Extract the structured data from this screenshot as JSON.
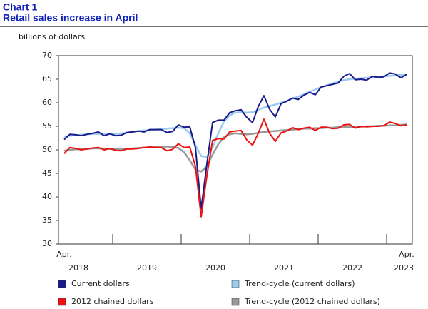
{
  "chart_data": {
    "type": "line",
    "title": "Chart 1",
    "subtitle": "Retail sales increase in April",
    "y_label": "billions of dollars",
    "categories": [
      "Apr.",
      null,
      null,
      null,
      null,
      null,
      null,
      null,
      null,
      null,
      null,
      null,
      null,
      null,
      null,
      null,
      null,
      null,
      null,
      null,
      null,
      null,
      null,
      null,
      null,
      null,
      null,
      null,
      null,
      null,
      null,
      null,
      null,
      null,
      null,
      null,
      null,
      null,
      null,
      null,
      null,
      null,
      null,
      null,
      null,
      null,
      null,
      null,
      null,
      null,
      null,
      null,
      null,
      null,
      null,
      null,
      null,
      null,
      null,
      null,
      "Apr."
    ],
    "year_labels": [
      "2018",
      "2019",
      "2020",
      "2021",
      "2022",
      "2023"
    ],
    "ylim": [
      30,
      70
    ],
    "yticks": [
      30,
      35,
      40,
      45,
      50,
      55,
      60,
      65,
      70
    ],
    "grid": false,
    "series": [
      {
        "name": "Current dollars",
        "color": "#1a1a8c",
        "width": 2,
        "values": [
          52.2,
          53.3,
          53.2,
          53.0,
          53.3,
          53.5,
          53.8,
          53.0,
          53.4,
          53.0,
          53.1,
          53.7,
          53.8,
          54.0,
          53.8,
          54.3,
          54.3,
          54.3,
          53.7,
          53.9,
          55.3,
          54.8,
          54.9,
          50.5,
          37.5,
          47.0,
          55.8,
          56.3,
          56.3,
          57.9,
          58.3,
          58.5,
          56.9,
          55.8,
          59.2,
          61.5,
          58.6,
          57.0,
          59.8,
          60.3,
          61.0,
          60.7,
          61.6,
          62.2,
          61.7,
          63.3,
          63.6,
          63.9,
          64.2,
          65.6,
          66.2,
          64.9,
          65.0,
          64.8,
          65.6,
          65.4,
          65.5,
          66.3,
          66.1,
          65.3,
          66.0
        ]
      },
      {
        "name": "Trend-cycle (current dollars)",
        "color": "#99ccee",
        "width": 2.5,
        "values": [
          52.8,
          53.0,
          53.1,
          53.2,
          53.3,
          53.4,
          53.4,
          53.4,
          53.4,
          53.4,
          53.5,
          53.6,
          53.8,
          54.0,
          54.1,
          54.2,
          54.3,
          54.4,
          54.5,
          54.6,
          54.7,
          54.6,
          53.5,
          51.0,
          48.7,
          48.5,
          50.5,
          53.5,
          56.0,
          57.3,
          57.9,
          58.0,
          57.9,
          58.0,
          58.5,
          59.0,
          59.3,
          59.6,
          60.0,
          60.4,
          60.9,
          61.3,
          61.8,
          62.3,
          62.8,
          63.3,
          63.7,
          64.1,
          64.5,
          64.8,
          65.0,
          65.1,
          65.2,
          65.3,
          65.4,
          65.5,
          65.6,
          65.7,
          65.8,
          65.9,
          66.0
        ]
      },
      {
        "name": "2012 chained dollars",
        "color": "#ee1111",
        "width": 2,
        "values": [
          49.2,
          50.5,
          50.3,
          50.0,
          50.2,
          50.4,
          50.5,
          50.0,
          50.3,
          49.9,
          49.8,
          50.2,
          50.2,
          50.3,
          50.5,
          50.6,
          50.5,
          50.5,
          49.8,
          50.1,
          51.3,
          50.5,
          50.6,
          46.5,
          35.8,
          44.5,
          52.0,
          52.4,
          52.3,
          53.8,
          54.0,
          54.1,
          52.1,
          51.0,
          53.5,
          56.5,
          53.5,
          51.8,
          53.6,
          54.0,
          54.7,
          54.3,
          54.6,
          54.8,
          54.1,
          54.8,
          54.8,
          54.5,
          54.6,
          55.3,
          55.4,
          54.6,
          55.0,
          54.9,
          55.0,
          55.0,
          55.1,
          55.9,
          55.6,
          55.1,
          55.3
        ]
      },
      {
        "name": "Trend-cycle (2012 chained dollars)",
        "color": "#999999",
        "width": 2.5,
        "values": [
          49.8,
          50.0,
          50.1,
          50.2,
          50.2,
          50.3,
          50.3,
          50.3,
          50.2,
          50.1,
          50.1,
          50.2,
          50.3,
          50.4,
          50.5,
          50.5,
          50.6,
          50.6,
          50.7,
          50.6,
          50.4,
          49.5,
          47.8,
          45.8,
          45.4,
          46.5,
          49.0,
          51.2,
          52.7,
          53.3,
          53.5,
          53.4,
          53.3,
          53.4,
          53.6,
          53.8,
          53.9,
          54.0,
          54.1,
          54.2,
          54.3,
          54.4,
          54.5,
          54.5,
          54.6,
          54.6,
          54.7,
          54.7,
          54.8,
          54.8,
          54.8,
          54.9,
          54.9,
          55.0,
          55.0,
          55.1,
          55.1,
          55.2,
          55.2,
          55.3,
          55.4
        ]
      }
    ]
  }
}
